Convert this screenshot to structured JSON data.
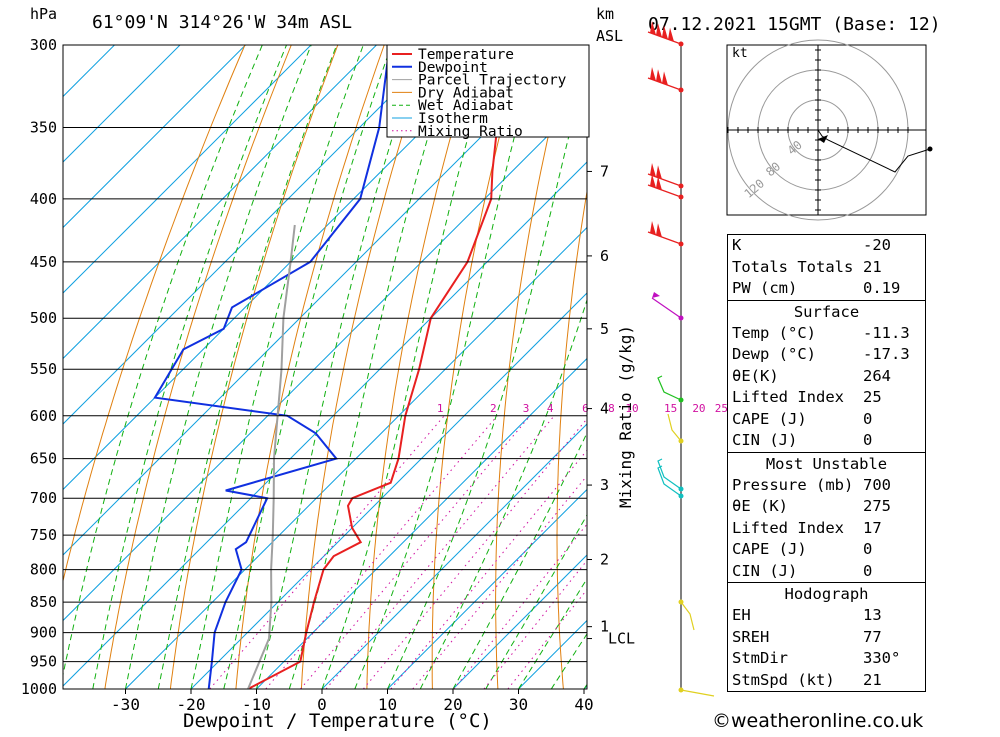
{
  "header": {
    "location": "61°09'N  314°26'W  34m  ASL",
    "datetime": "07.12.2021  15GMT  (Base: 12)",
    "hpa_unit": "hPa",
    "km_unit": "km",
    "asl_unit": "ASL"
  },
  "colors": {
    "temperature": "#e82020",
    "dewpoint": "#1030e0",
    "parcel": "#a0a0a0",
    "dry_adiabat": "#e08010",
    "wet_adiabat": "#10b010",
    "isotherm": "#10a0e0",
    "mixing_ratio": "#d010a0",
    "wind_red": "#e82020",
    "wind_magenta": "#c010c0",
    "wind_green": "#20c020",
    "wind_cyan": "#10c0c0",
    "wind_yellow": "#e0d020"
  },
  "chart_data": {
    "type": "line",
    "title": "",
    "xlabel": "Dewpoint / Temperature (°C)",
    "ylabel": "hPa",
    "secondary_ylabel": "Mixing Ratio (g/kg)",
    "xlim": [
      -40,
      40
    ],
    "ylim": [
      1000,
      300
    ],
    "x_ticks": [
      -30,
      -20,
      -10,
      0,
      10,
      20,
      30,
      40
    ],
    "pressure_levels": [
      300,
      350,
      400,
      450,
      500,
      550,
      600,
      650,
      700,
      750,
      800,
      850,
      900,
      950,
      1000
    ],
    "km_ticks": [
      {
        "label": "7",
        "p": 380
      },
      {
        "label": "6",
        "p": 445
      },
      {
        "label": "5",
        "p": 510
      },
      {
        "label": "4",
        "p": 592
      },
      {
        "label": "3",
        "p": 683
      },
      {
        "label": "2",
        "p": 785
      },
      {
        "label": "1",
        "p": 890
      },
      {
        "label": "LCL",
        "p": 910
      }
    ],
    "mixing_ratio_labels": [
      "1",
      "2",
      "3",
      "4",
      "6",
      "8",
      "10",
      "15",
      "20",
      "25"
    ],
    "mixing_ratio_values": [
      1,
      2,
      3,
      4,
      6,
      8,
      10,
      15,
      20,
      25
    ],
    "legend": [
      "Temperature",
      "Dewpoint",
      "Parcel Trajectory",
      "Dry Adiabat",
      "Wet Adiabat",
      "Isotherm",
      "Mixing Ratio"
    ],
    "legend_position": "top-right",
    "series": [
      {
        "name": "Temperature",
        "points": [
          [
            1000,
            -11.3
          ],
          [
            950,
            -7.5
          ],
          [
            900,
            -11
          ],
          [
            850,
            -14.5
          ],
          [
            800,
            -18
          ],
          [
            780,
            -18.5
          ],
          [
            760,
            -16.5
          ],
          [
            740,
            -20
          ],
          [
            710,
            -24
          ],
          [
            700,
            -24.5
          ],
          [
            680,
            -21
          ],
          [
            650,
            -23.5
          ],
          [
            600,
            -29
          ],
          [
            550,
            -34
          ],
          [
            500,
            -40
          ],
          [
            450,
            -43
          ],
          [
            400,
            -49
          ],
          [
            380,
            -53
          ],
          [
            350,
            -59
          ],
          [
            300,
            -68
          ]
        ]
      },
      {
        "name": "Dewpoint",
        "points": [
          [
            1000,
            -17.3
          ],
          [
            950,
            -21
          ],
          [
            900,
            -25
          ],
          [
            850,
            -28
          ],
          [
            800,
            -30.5
          ],
          [
            770,
            -34.5
          ],
          [
            760,
            -34
          ],
          [
            700,
            -37.5
          ],
          [
            690,
            -45
          ],
          [
            650,
            -33
          ],
          [
            620,
            -40
          ],
          [
            600,
            -47
          ],
          [
            580,
            -70
          ],
          [
            530,
            -73
          ],
          [
            510,
            -70
          ],
          [
            490,
            -72
          ],
          [
            450,
            -67
          ],
          [
            400,
            -69
          ],
          [
            350,
            -77
          ],
          [
            300,
            -88
          ]
        ]
      },
      {
        "name": "Parcel Trajectory",
        "points": [
          [
            1000,
            -11.3
          ],
          [
            910,
            -15.8
          ],
          [
            850,
            -21
          ],
          [
            800,
            -26
          ],
          [
            750,
            -31
          ],
          [
            700,
            -36.5
          ],
          [
            650,
            -42.5
          ],
          [
            600,
            -48.5
          ],
          [
            550,
            -55
          ],
          [
            500,
            -62.5
          ],
          [
            450,
            -70
          ],
          [
            420,
            -75
          ]
        ]
      }
    ]
  },
  "hodograph": {
    "unit_label": "kt",
    "ring_labels": [
      "40",
      "80",
      "120"
    ]
  },
  "indices": [
    {
      "label": "K",
      "value": "-20"
    },
    {
      "label": "Totals Totals",
      "value": "21"
    },
    {
      "label": "PW (cm)",
      "value": "0.19"
    }
  ],
  "surface": {
    "title": "Surface",
    "rows": [
      {
        "label": "Temp (°C)",
        "value": "-11.3"
      },
      {
        "label": "Dewp (°C)",
        "value": "-17.3"
      },
      {
        "label": "θE(K)",
        "value": "264"
      },
      {
        "label": "Lifted Index",
        "value": "25"
      },
      {
        "label": "CAPE (J)",
        "value": "0"
      },
      {
        "label": "CIN (J)",
        "value": "0"
      }
    ]
  },
  "most_unstable": {
    "title": "Most Unstable",
    "rows": [
      {
        "label": "Pressure (mb)",
        "value": "700"
      },
      {
        "label": "θE (K)",
        "value": "275"
      },
      {
        "label": "Lifted Index",
        "value": "17"
      },
      {
        "label": "CAPE (J)",
        "value": "0"
      },
      {
        "label": "CIN (J)",
        "value": "0"
      }
    ]
  },
  "hodograph_stats": {
    "title": "Hodograph",
    "rows": [
      {
        "label": "EH",
        "value": "13"
      },
      {
        "label": "SREH",
        "value": "77"
      },
      {
        "label": "StmDir",
        "value": "330°"
      },
      {
        "label": "StmSpd (kt)",
        "value": "21"
      }
    ]
  },
  "footer": {
    "brand": "©weatheronline.co.uk"
  }
}
